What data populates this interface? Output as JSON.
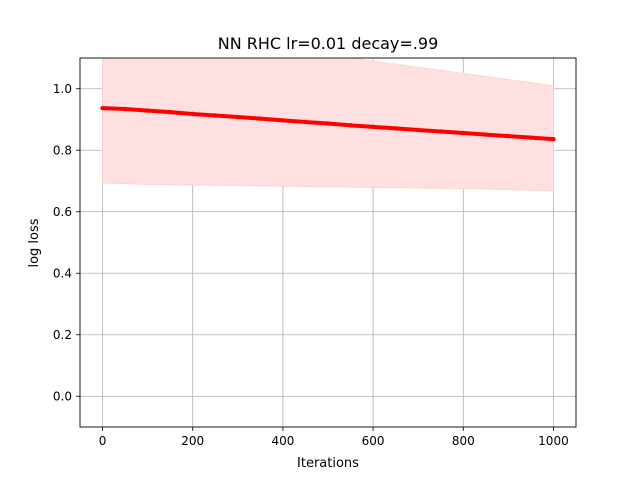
{
  "chart_data": {
    "type": "line",
    "title": "NN RHC lr=0.01 decay=.99",
    "xlabel": "Iterations",
    "ylabel": "log loss",
    "xlim": [
      -50,
      1050
    ],
    "ylim": [
      -0.1,
      1.1
    ],
    "xticks": [
      0,
      200,
      400,
      600,
      800,
      1000
    ],
    "xtick_labels": [
      "0",
      "200",
      "400",
      "600",
      "800",
      "1000"
    ],
    "yticks": [
      0.0,
      0.2,
      0.4,
      0.6,
      0.8,
      1.0
    ],
    "ytick_labels": [
      "0.0",
      "0.2",
      "0.4",
      "0.6",
      "0.8",
      "1.0"
    ],
    "grid": true,
    "series": [
      {
        "color": "#ff0000",
        "band_color": "#ffe0e0",
        "x": [
          0,
          50,
          100,
          150,
          200,
          250,
          300,
          350,
          400,
          450,
          500,
          550,
          600,
          650,
          700,
          750,
          800,
          850,
          900,
          950,
          1000
        ],
        "y": [
          0.937,
          0.934,
          0.929,
          0.924,
          0.918,
          0.913,
          0.908,
          0.903,
          0.897,
          0.892,
          0.887,
          0.881,
          0.876,
          0.871,
          0.866,
          0.861,
          0.856,
          0.851,
          0.846,
          0.841,
          0.836
        ],
        "band_upper": [
          1.18,
          1.18,
          1.18,
          1.17,
          1.17,
          1.16,
          1.15,
          1.14,
          1.13,
          1.12,
          1.11,
          1.1,
          1.09,
          1.08,
          1.07,
          1.06,
          1.05,
          1.04,
          1.03,
          1.02,
          1.01
        ],
        "band_lower": [
          0.693,
          0.691,
          0.689,
          0.688,
          0.687,
          0.686,
          0.685,
          0.684,
          0.683,
          0.682,
          0.681,
          0.68,
          0.679,
          0.678,
          0.677,
          0.676,
          0.675,
          0.674,
          0.672,
          0.67,
          0.667
        ]
      }
    ]
  }
}
